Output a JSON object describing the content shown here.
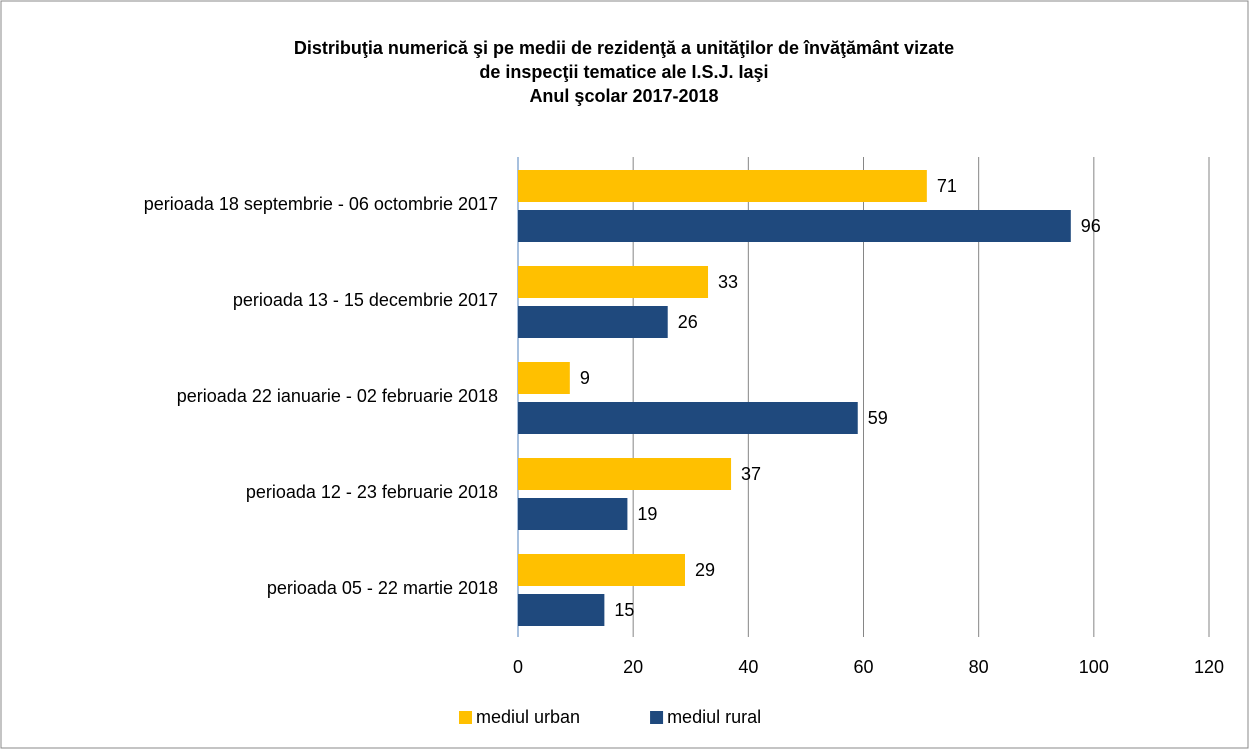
{
  "chart_data": {
    "type": "bar",
    "orientation": "horizontal",
    "title": [
      "Distribuţia numerică şi pe medii de rezidenţă a unităţilor de învăţământ vizate",
      "de inspecţii tematice ale I.S.J. Iaşi",
      "Anul şcolar 2017-2018"
    ],
    "categories": [
      "perioada 18 septembrie - 06 octombrie 2017",
      "perioada 13 - 15 decembrie 2017",
      "perioada 22 ianuarie - 02 februarie 2018",
      "perioada 12 - 23 februarie 2018",
      "perioada 05 - 22 martie 2018"
    ],
    "series": [
      {
        "name": "mediul urban",
        "color": "#ffc000",
        "values": [
          71,
          33,
          9,
          37,
          29
        ]
      },
      {
        "name": "mediul rural",
        "color": "#1f497d",
        "values": [
          96,
          26,
          59,
          19,
          15
        ]
      }
    ],
    "xlim": [
      0,
      120
    ],
    "xticks": [
      0,
      20,
      40,
      60,
      80,
      100,
      120
    ],
    "grid": true,
    "legend": "bottom"
  }
}
